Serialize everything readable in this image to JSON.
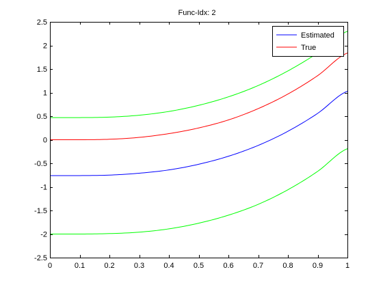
{
  "chart_data": {
    "type": "line",
    "title": "Func-Idx: 2",
    "xlabel": "",
    "ylabel": "",
    "xlim": [
      0,
      1
    ],
    "ylim": [
      -2.5,
      2.5
    ],
    "xticks": [
      0,
      0.1,
      0.2,
      0.3,
      0.4,
      0.5,
      0.6,
      0.7,
      0.8,
      0.9,
      1
    ],
    "xtick_labels": [
      "0",
      "0.1",
      "0.2",
      "0.3",
      "0.4",
      "0.5",
      "0.6",
      "0.7",
      "0.8",
      "0.9",
      "1"
    ],
    "yticks": [
      -2.5,
      -2,
      -1.5,
      -1,
      -0.5,
      0,
      0.5,
      1,
      1.5,
      2,
      2.5
    ],
    "ytick_labels": [
      "-2.5",
      "-2",
      "-1.5",
      "-1",
      "-0.5",
      "0",
      "0.5",
      "1",
      "1.5",
      "2",
      "2.5"
    ],
    "grid": false,
    "legend_position": "top-right",
    "x": [
      0,
      0.1,
      0.2,
      0.3,
      0.4,
      0.5,
      0.6,
      0.7,
      0.8,
      0.9,
      1.0
    ],
    "series": [
      {
        "name": "Estimated",
        "color": "#0000ff",
        "in_legend": true,
        "values": [
          -0.76,
          -0.76,
          -0.75,
          -0.71,
          -0.64,
          -0.52,
          -0.35,
          -0.12,
          0.18,
          0.56,
          1.03
        ]
      },
      {
        "name": "True",
        "color": "#ff0000",
        "in_legend": true,
        "values": [
          0.0,
          0.0,
          0.01,
          0.05,
          0.13,
          0.25,
          0.42,
          0.66,
          0.97,
          1.36,
          1.84
        ]
      },
      {
        "color": "#00ff00",
        "in_legend": false,
        "values": [
          0.47,
          0.47,
          0.48,
          0.52,
          0.6,
          0.73,
          0.91,
          1.15,
          1.46,
          1.84,
          2.3
        ]
      },
      {
        "color": "#00ff00",
        "in_legend": false,
        "values": [
          -2.0,
          -2.0,
          -1.99,
          -1.96,
          -1.89,
          -1.77,
          -1.6,
          -1.37,
          -1.06,
          -0.67,
          -0.19
        ]
      }
    ]
  }
}
